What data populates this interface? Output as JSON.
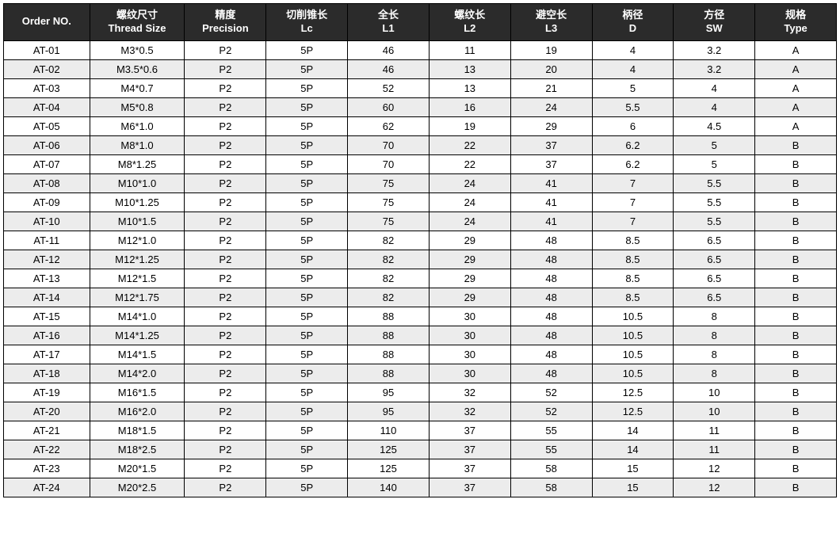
{
  "table": {
    "header_bg": "#2b2b2b",
    "header_fg": "#ffffff",
    "row_even_bg": "#ececec",
    "row_odd_bg": "#ffffff",
    "border_color": "#000000",
    "columns": [
      {
        "line1": "Order NO.",
        "line2": ""
      },
      {
        "line1": "螺纹尺寸",
        "line2": "Thread Size"
      },
      {
        "line1": "精度",
        "line2": "Precision"
      },
      {
        "line1": "切削锥长",
        "line2": "Lc"
      },
      {
        "line1": "全长",
        "line2": "L1"
      },
      {
        "line1": "螺纹长",
        "line2": "L2"
      },
      {
        "line1": "避空长",
        "line2": "L3"
      },
      {
        "line1": "柄径",
        "line2": "D"
      },
      {
        "line1": "方径",
        "line2": "SW"
      },
      {
        "line1": "规格",
        "line2": "Type"
      }
    ],
    "rows": [
      [
        "AT-01",
        "M3*0.5",
        "P2",
        "5P",
        "46",
        "11",
        "19",
        "4",
        "3.2",
        "A"
      ],
      [
        "AT-02",
        "M3.5*0.6",
        "P2",
        "5P",
        "46",
        "13",
        "20",
        "4",
        "3.2",
        "A"
      ],
      [
        "AT-03",
        "M4*0.7",
        "P2",
        "5P",
        "52",
        "13",
        "21",
        "5",
        "4",
        "A"
      ],
      [
        "AT-04",
        "M5*0.8",
        "P2",
        "5P",
        "60",
        "16",
        "24",
        "5.5",
        "4",
        "A"
      ],
      [
        "AT-05",
        "M6*1.0",
        "P2",
        "5P",
        "62",
        "19",
        "29",
        "6",
        "4.5",
        "A"
      ],
      [
        "AT-06",
        "M8*1.0",
        "P2",
        "5P",
        "70",
        "22",
        "37",
        "6.2",
        "5",
        "B"
      ],
      [
        "AT-07",
        "M8*1.25",
        "P2",
        "5P",
        "70",
        "22",
        "37",
        "6.2",
        "5",
        "B"
      ],
      [
        "AT-08",
        "M10*1.0",
        "P2",
        "5P",
        "75",
        "24",
        "41",
        "7",
        "5.5",
        "B"
      ],
      [
        "AT-09",
        "M10*1.25",
        "P2",
        "5P",
        "75",
        "24",
        "41",
        "7",
        "5.5",
        "B"
      ],
      [
        "AT-10",
        "M10*1.5",
        "P2",
        "5P",
        "75",
        "24",
        "41",
        "7",
        "5.5",
        "B"
      ],
      [
        "AT-11",
        "M12*1.0",
        "P2",
        "5P",
        "82",
        "29",
        "48",
        "8.5",
        "6.5",
        "B"
      ],
      [
        "AT-12",
        "M12*1.25",
        "P2",
        "5P",
        "82",
        "29",
        "48",
        "8.5",
        "6.5",
        "B"
      ],
      [
        "AT-13",
        "M12*1.5",
        "P2",
        "5P",
        "82",
        "29",
        "48",
        "8.5",
        "6.5",
        "B"
      ],
      [
        "AT-14",
        "M12*1.75",
        "P2",
        "5P",
        "82",
        "29",
        "48",
        "8.5",
        "6.5",
        "B"
      ],
      [
        "AT-15",
        "M14*1.0",
        "P2",
        "5P",
        "88",
        "30",
        "48",
        "10.5",
        "8",
        "B"
      ],
      [
        "AT-16",
        "M14*1.25",
        "P2",
        "5P",
        "88",
        "30",
        "48",
        "10.5",
        "8",
        "B"
      ],
      [
        "AT-17",
        "M14*1.5",
        "P2",
        "5P",
        "88",
        "30",
        "48",
        "10.5",
        "8",
        "B"
      ],
      [
        "AT-18",
        "M14*2.0",
        "P2",
        "5P",
        "88",
        "30",
        "48",
        "10.5",
        "8",
        "B"
      ],
      [
        "AT-19",
        "M16*1.5",
        "P2",
        "5P",
        "95",
        "32",
        "52",
        "12.5",
        "10",
        "B"
      ],
      [
        "AT-20",
        "M16*2.0",
        "P2",
        "5P",
        "95",
        "32",
        "52",
        "12.5",
        "10",
        "B"
      ],
      [
        "AT-21",
        "M18*1.5",
        "P2",
        "5P",
        "110",
        "37",
        "55",
        "14",
        "11",
        "B"
      ],
      [
        "AT-22",
        "M18*2.5",
        "P2",
        "5P",
        "125",
        "37",
        "55",
        "14",
        "11",
        "B"
      ],
      [
        "AT-23",
        "M20*1.5",
        "P2",
        "5P",
        "125",
        "37",
        "58",
        "15",
        "12",
        "B"
      ],
      [
        "AT-24",
        "M20*2.5",
        "P2",
        "5P",
        "140",
        "37",
        "58",
        "15",
        "12",
        "B"
      ]
    ]
  }
}
